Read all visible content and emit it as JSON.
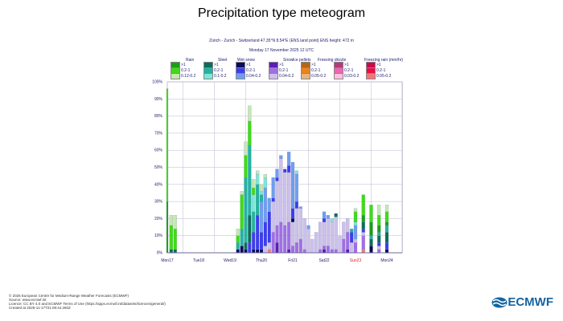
{
  "title": "Precipitation type meteogram",
  "subtitle1": "Zürich - Zurich - Switzerland 47.35°N 8.54°E (ENS land point) ENS height: 472 m",
  "subtitle2": "Monday 17 November 2025 12 UTC",
  "legend": [
    {
      "name": "Rain",
      "items": [
        {
          "key": "r1",
          "label": ">1"
        },
        {
          "key": "r2",
          "label": "0.2-1"
        },
        {
          "key": "r3",
          "label": "0.12-0.2"
        }
      ]
    },
    {
      "name": "Sleet",
      "items": [
        {
          "key": "s1",
          "label": ">1"
        },
        {
          "key": "s2",
          "label": "0.2-1"
        },
        {
          "key": "s3",
          "label": "0.1-0.2"
        }
      ]
    },
    {
      "name": "Wet snow",
      "items": [
        {
          "key": "w1",
          "label": ">1"
        },
        {
          "key": "w2",
          "label": "0.2-1"
        },
        {
          "key": "w3",
          "label": "0.04-0.2"
        }
      ]
    },
    {
      "name": "Snow",
      "items": [
        {
          "key": "n1",
          "label": ">1"
        },
        {
          "key": "n2",
          "label": "0.2-1"
        },
        {
          "key": "n3",
          "label": "0.04-0.2"
        }
      ]
    },
    {
      "name": "Ice pellets",
      "items": [
        {
          "key": "i1",
          "label": ">1"
        },
        {
          "key": "i2",
          "label": "0.2-1"
        },
        {
          "key": "i3",
          "label": "0.05-0.2"
        }
      ]
    },
    {
      "name": "Freezing drizzle",
      "items": [
        {
          "key": "fd1",
          "label": ">1"
        },
        {
          "key": "fd2",
          "label": "0.2-1"
        },
        {
          "key": "fd3",
          "label": "0.03-0.2"
        }
      ]
    },
    {
      "name": "Freezing rain (mm/hr)",
      "items": [
        {
          "key": "fr1",
          "label": ">1"
        },
        {
          "key": "fr2",
          "label": "0.2-1"
        },
        {
          "key": "fr3",
          "label": "0.05-0.2"
        }
      ]
    }
  ],
  "colors": {
    "r1": "#1a9e1a",
    "r2": "#3ddc14",
    "r3": "#c4e8b4",
    "s1": "#0a6e5a",
    "s2": "#20b4a0",
    "s3": "#7ee6d6",
    "w1": "#0a0a5a",
    "w2": "#3c3cf0",
    "w3": "#6e9ef0",
    "n1": "#5a1eb4",
    "n2": "#a06ee6",
    "n3": "#ccc0ec",
    "i1": "#b46414",
    "i2": "#f08214",
    "i3": "#e6b482",
    "fd1": "#b43c78",
    "fd2": "#f064b4",
    "fd3": "#fcc0e0",
    "fr1": "#c80a46",
    "fr2": "#f00a46",
    "fr3": "#f07878"
  },
  "chart_data": {
    "type": "bar",
    "stacked": true,
    "ylim": [
      0,
      100
    ],
    "yticks": [
      "0%",
      "10%",
      "20%",
      "30%",
      "40%",
      "50%",
      "60%",
      "70%",
      "80%",
      "90%",
      "100%"
    ],
    "xticks": [
      {
        "label": "Mon17",
        "h": 0,
        "weekend": false
      },
      {
        "label": "Tue18",
        "h": 24,
        "weekend": false
      },
      {
        "label": "Wed19",
        "h": 48,
        "weekend": false
      },
      {
        "label": "Thu20",
        "h": 72,
        "weekend": false
      },
      {
        "label": "Fri21",
        "h": 96,
        "weekend": false
      },
      {
        "label": "Sat22",
        "h": 120,
        "weekend": false
      },
      {
        "label": "Sun23",
        "h": 144,
        "weekend": true
      },
      {
        "label": "Mon24",
        "h": 168,
        "weekend": false
      }
    ],
    "bars": [
      {
        "h": 0,
        "seg": [
          [
            "r1",
            30
          ],
          [
            "r2",
            66
          ]
        ]
      },
      {
        "h": 3,
        "seg": [
          [
            "s1",
            2
          ],
          [
            "r2",
            14
          ],
          [
            "r3",
            6
          ]
        ]
      },
      {
        "h": 6,
        "seg": [
          [
            "s1",
            2
          ],
          [
            "r2",
            12
          ],
          [
            "r3",
            8
          ]
        ]
      },
      {
        "h": 54,
        "seg": [
          [
            "w1",
            2
          ],
          [
            "s2",
            4
          ],
          [
            "r2",
            4
          ],
          [
            "r3",
            4
          ]
        ]
      },
      {
        "h": 57,
        "seg": [
          [
            "w1",
            4
          ],
          [
            "s2",
            10
          ],
          [
            "r2",
            20
          ],
          [
            "r3",
            2
          ]
        ]
      },
      {
        "h": 60,
        "seg": [
          [
            "w1",
            2
          ],
          [
            "s1",
            4
          ],
          [
            "s2",
            38
          ],
          [
            "r2",
            13
          ],
          [
            "r3",
            8
          ]
        ]
      },
      {
        "h": 63,
        "seg": [
          [
            "w2",
            6
          ],
          [
            "s1",
            16
          ],
          [
            "s2",
            41
          ],
          [
            "r2",
            14
          ],
          [
            "r3",
            9
          ]
        ]
      },
      {
        "h": 66,
        "seg": [
          [
            "w1",
            2
          ],
          [
            "w2",
            10
          ],
          [
            "s2",
            12
          ],
          [
            "s3",
            10
          ],
          [
            "r2",
            4
          ],
          [
            "r3",
            5
          ]
        ]
      },
      {
        "h": 69,
        "seg": [
          [
            "w1",
            2
          ],
          [
            "w2",
            20
          ],
          [
            "s2",
            18
          ],
          [
            "s3",
            6
          ],
          [
            "r3",
            2
          ]
        ]
      },
      {
        "h": 72,
        "seg": [
          [
            "w1",
            2
          ],
          [
            "w2",
            10
          ],
          [
            "w3",
            18
          ],
          [
            "s2",
            4
          ],
          [
            "s3",
            2
          ],
          [
            "r3",
            4
          ]
        ]
      },
      {
        "h": 75,
        "seg": [
          [
            "n3",
            4
          ],
          [
            "w2",
            14
          ],
          [
            "w3",
            20
          ],
          [
            "s3",
            6
          ],
          [
            "r3",
            2
          ]
        ]
      },
      {
        "h": 78,
        "seg": [
          [
            "fr3",
            2
          ],
          [
            "n3",
            4
          ],
          [
            "w2",
            18
          ],
          [
            "w3",
            8
          ]
        ]
      },
      {
        "h": 81,
        "seg": [
          [
            "n2",
            12
          ],
          [
            "n3",
            18
          ],
          [
            "w2",
            2
          ],
          [
            "w3",
            12
          ]
        ]
      },
      {
        "h": 84,
        "seg": [
          [
            "n1",
            6
          ],
          [
            "n2",
            10
          ],
          [
            "n3",
            26
          ],
          [
            "w2",
            2
          ],
          [
            "w3",
            5
          ]
        ]
      },
      {
        "h": 87,
        "seg": [
          [
            "n2",
            18
          ],
          [
            "n3",
            37
          ],
          [
            "w3",
            2
          ]
        ]
      },
      {
        "h": 90,
        "seg": [
          [
            "n2",
            16
          ],
          [
            "n3",
            31
          ],
          [
            "w2",
            2
          ]
        ]
      },
      {
        "h": 93,
        "seg": [
          [
            "n1",
            2
          ],
          [
            "n2",
            16
          ],
          [
            "n3",
            29
          ],
          [
            "w2",
            4
          ],
          [
            "w3",
            8
          ]
        ]
      },
      {
        "h": 96,
        "seg": [
          [
            "n2",
            4
          ],
          [
            "n3",
            14
          ],
          [
            "w1",
            2
          ],
          [
            "w2",
            6
          ],
          [
            "w3",
            27
          ]
        ]
      },
      {
        "h": 99,
        "seg": [
          [
            "n2",
            6
          ],
          [
            "n3",
            20
          ],
          [
            "w2",
            4
          ],
          [
            "w3",
            16
          ],
          [
            "s3",
            2
          ]
        ]
      },
      {
        "h": 102,
        "seg": [
          [
            "n2",
            8
          ],
          [
            "n3",
            18
          ],
          [
            "w3",
            1
          ]
        ]
      },
      {
        "h": 105,
        "seg": [
          [
            "n2",
            2
          ],
          [
            "n3",
            18
          ]
        ]
      },
      {
        "h": 108,
        "seg": [
          [
            "n3",
            14
          ],
          [
            "w3",
            2
          ]
        ]
      },
      {
        "h": 111,
        "seg": [
          [
            "n3",
            8
          ]
        ]
      },
      {
        "h": 114,
        "seg": [
          [
            "n3",
            12
          ]
        ]
      },
      {
        "h": 117,
        "seg": [
          [
            "n2",
            2
          ],
          [
            "n3",
            16
          ]
        ]
      },
      {
        "h": 120,
        "seg": [
          [
            "n1",
            2
          ],
          [
            "n2",
            2
          ],
          [
            "n3",
            14
          ],
          [
            "w2",
            2
          ],
          [
            "w3",
            4
          ]
        ]
      },
      {
        "h": 123,
        "seg": [
          [
            "n2",
            4
          ],
          [
            "n3",
            16
          ],
          [
            "w3",
            2
          ]
        ]
      },
      {
        "h": 126,
        "seg": [
          [
            "n2",
            2
          ],
          [
            "n3",
            16
          ],
          [
            "s3",
            2
          ]
        ]
      },
      {
        "h": 129,
        "seg": [
          [
            "n2",
            2
          ],
          [
            "n3",
            19
          ],
          [
            "s1",
            2
          ]
        ]
      },
      {
        "h": 132,
        "seg": [
          [
            "n3",
            10
          ]
        ]
      },
      {
        "h": 135,
        "seg": [
          [
            "n2",
            8
          ],
          [
            "n3",
            10
          ]
        ]
      },
      {
        "h": 138,
        "seg": [
          [
            "n1",
            2
          ],
          [
            "n2",
            10
          ],
          [
            "n3",
            8
          ]
        ]
      },
      {
        "h": 141,
        "seg": [
          [
            "n3",
            6
          ],
          [
            "w2",
            6
          ],
          [
            "s2",
            2
          ]
        ]
      },
      {
        "h": 144,
        "seg": [
          [
            "n2",
            6
          ],
          [
            "n3",
            2
          ],
          [
            "w3",
            8
          ],
          [
            "s3",
            2
          ],
          [
            "r2",
            6
          ],
          [
            "r3",
            2
          ]
        ]
      },
      {
        "h": 150,
        "seg": [
          [
            "fr3",
            2
          ],
          [
            "n2",
            8
          ],
          [
            "n3",
            2
          ],
          [
            "w2",
            2
          ],
          [
            "s1",
            4
          ],
          [
            "r1",
            4
          ],
          [
            "r2",
            12
          ]
        ]
      },
      {
        "h": 156,
        "seg": [
          [
            "w1",
            4
          ],
          [
            "s1",
            4
          ],
          [
            "s2",
            2
          ],
          [
            "r1",
            8
          ],
          [
            "r2",
            10
          ]
        ]
      },
      {
        "h": 162,
        "seg": [
          [
            "n2",
            2
          ],
          [
            "n3",
            2
          ],
          [
            "w2",
            2
          ],
          [
            "s1",
            4
          ],
          [
            "s2",
            2
          ],
          [
            "r1",
            4
          ],
          [
            "r2",
            6
          ],
          [
            "r3",
            6
          ]
        ]
      },
      {
        "h": 168,
        "seg": [
          [
            "w1",
            2
          ],
          [
            "w2",
            4
          ],
          [
            "s1",
            6
          ],
          [
            "s2",
            4
          ],
          [
            "r1",
            2
          ],
          [
            "r2",
            6
          ],
          [
            "r3",
            4
          ]
        ]
      }
    ]
  },
  "footer": [
    "© 2025 European Centre for Medium-Range Weather Forecasts (ECMWF)",
    "Source: www.ecmwf.int",
    "Licence: CC BY 4.0 and ECMWF Terms of Use (https://apps.ecmwf.int/datasets/licences/general/)",
    "Created at 2025-11-17T21:09:44.260Z"
  ],
  "logo_text": "ECMWF"
}
